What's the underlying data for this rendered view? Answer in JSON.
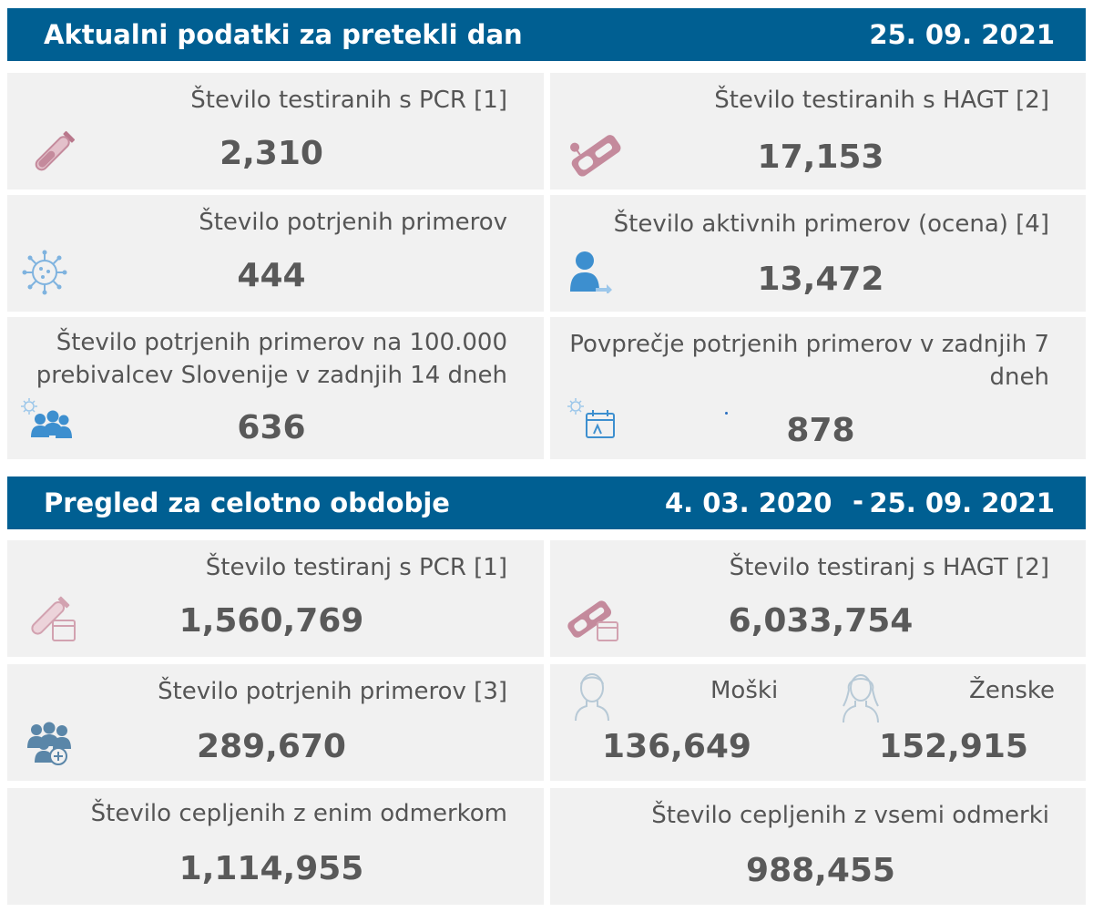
{
  "daily": {
    "title": "Aktualni podatki za pretekli dan",
    "date": "25. 09. 2021",
    "cards": {
      "pcr": {
        "label": "Število testiranih s PCR [1]",
        "value": "2,310",
        "icon": "test-tube-icon"
      },
      "hagt": {
        "label": "Število testiranih s HAGT [2]",
        "value": "17,153",
        "icon": "rapid-test-icon"
      },
      "confirmed": {
        "label": "Število potrjenih primerov",
        "value": "444",
        "icon": "virus-icon"
      },
      "active": {
        "label": "Število aktivnih primerov (ocena) [4]",
        "value": "13,472",
        "icon": "person-icon"
      },
      "per100k": {
        "label_line1": "Število potrjenih primerov na 100.000",
        "label_line2": "prebivalcev Slovenije v zadnjih 14 dneh",
        "value": "636",
        "icon": "people-virus-icon"
      },
      "avg7": {
        "label_line1": "Povprečje potrjenih primerov v zadnjih 7",
        "label_line2": "dneh",
        "value": "878",
        "icon": "calendar-virus-icon"
      }
    }
  },
  "overall": {
    "title": "Pregled za celotno obdobje",
    "date_from": "4. 03. 2020",
    "dash": "-",
    "date_to": "25. 09. 2021",
    "cards": {
      "pcr": {
        "label": "Število testiranj s PCR [1]",
        "value": "1,560,769",
        "icon": "test-tube-calendar-icon"
      },
      "hagt": {
        "label": "Število testiranj s HAGT [2]",
        "value": "6,033,754",
        "icon": "rapid-test-calendar-icon"
      },
      "confirmed": {
        "label": "Število potrjenih primerov [3]",
        "value": "289,670",
        "icon": "people-plus-icon"
      },
      "gender": {
        "male_label": "Moški",
        "male_value": "136,649",
        "male_icon": "male-avatar-icon",
        "female_label": "Ženske",
        "female_value": "152,915",
        "female_icon": "female-avatar-icon"
      },
      "vacc_one": {
        "label": "Število cepljenih z enim odmerkom",
        "value": "1,114,955"
      },
      "vacc_all": {
        "label": "Število cepljenih z vsemi odmerki",
        "value": "988,455"
      }
    }
  },
  "colors": {
    "header_bg": "#005f92",
    "card_bg": "#f1f1f1",
    "icon_pink": "#c48a9c",
    "icon_blue": "#3d8fcf"
  }
}
